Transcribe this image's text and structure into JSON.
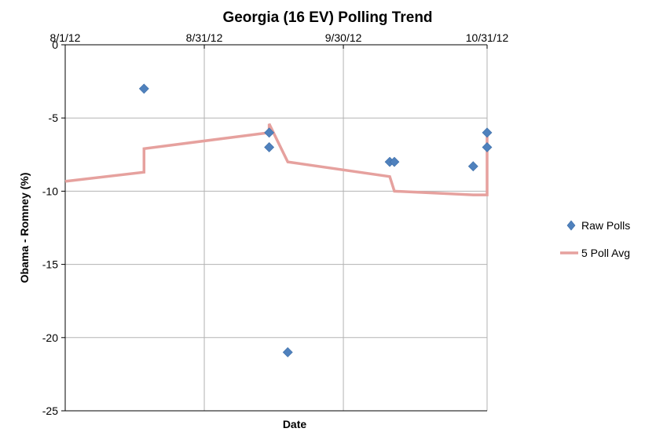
{
  "chart_data": {
    "type": "line",
    "title": "Georgia (16 EV) Polling Trend",
    "xlabel": "Date",
    "ylabel": "Obama - Romney (%)",
    "x_ticks": [
      "8/1/12",
      "8/31/12",
      "9/30/12",
      "10/31/12"
    ],
    "x_tick_dates": [
      "2012-08-01",
      "2012-08-31",
      "2012-09-30",
      "2012-10-31"
    ],
    "xlim": [
      "2012-08-01",
      "2012-10-31"
    ],
    "y_ticks": [
      0,
      -5,
      -10,
      -15,
      -20,
      -25
    ],
    "ylim": [
      -25,
      0
    ],
    "grid": true,
    "legend_position": "right",
    "series": [
      {
        "name": "Raw Polls",
        "kind": "scatter",
        "color": "#4F81BD",
        "points": [
          {
            "x": "2012-08-18",
            "y": -3
          },
          {
            "x": "2012-09-14",
            "y": -6
          },
          {
            "x": "2012-09-14",
            "y": -7
          },
          {
            "x": "2012-09-18",
            "y": -21
          },
          {
            "x": "2012-10-10",
            "y": -8
          },
          {
            "x": "2012-10-11",
            "y": -8
          },
          {
            "x": "2012-10-28",
            "y": -8.3
          },
          {
            "x": "2012-10-31",
            "y": -6
          },
          {
            "x": "2012-10-31",
            "y": -7
          }
        ]
      },
      {
        "name": "5 Poll Avg",
        "kind": "line",
        "color": "#E6A19E",
        "points": [
          {
            "x": "2012-08-01",
            "y": -9.33
          },
          {
            "x": "2012-08-18",
            "y": -8.7
          },
          {
            "x": "2012-08-18",
            "y": -7.1
          },
          {
            "x": "2012-09-14",
            "y": -6.0
          },
          {
            "x": "2012-09-14",
            "y": -5.4
          },
          {
            "x": "2012-09-18",
            "y": -8.0
          },
          {
            "x": "2012-10-10",
            "y": -9.0
          },
          {
            "x": "2012-10-11",
            "y": -10.0
          },
          {
            "x": "2012-10-28",
            "y": -10.25
          },
          {
            "x": "2012-10-31",
            "y": -10.25
          },
          {
            "x": "2012-10-31",
            "y": -6.0
          }
        ]
      }
    ]
  }
}
